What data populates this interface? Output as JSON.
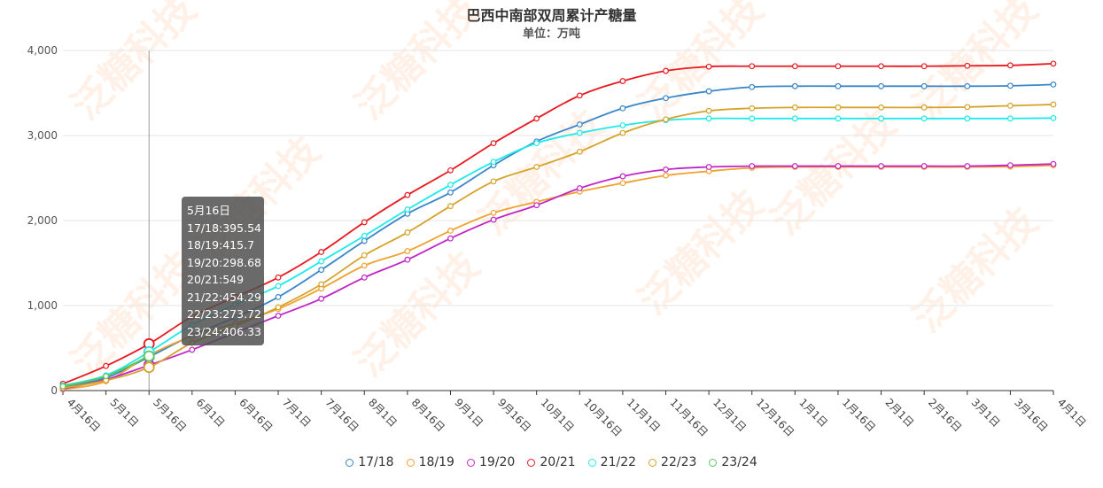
{
  "chart_data": {
    "type": "line",
    "title": "巴西中南部双周累计产糖量",
    "subtitle": "单位：万吨",
    "watermark": "泛糖科技",
    "categories": [
      "4月16日",
      "5月1日",
      "5月16日",
      "6月1日",
      "6月16日",
      "7月1日",
      "7月16日",
      "8月1日",
      "8月16日",
      "9月1日",
      "9月16日",
      "10月1日",
      "10月16日",
      "11月1日",
      "11月16日",
      "12月1日",
      "12月16日",
      "1月1日",
      "1月16日",
      "2月1日",
      "2月16日",
      "3月1日",
      "3月16日",
      "4月1日"
    ],
    "ylim": [
      0,
      4000
    ],
    "yticks": [
      "0",
      "1,000",
      "2,000",
      "3,000",
      "4,000"
    ],
    "yticks_values": [
      0,
      1000,
      2000,
      3000,
      4000
    ],
    "grid": true,
    "legend_position": "bottom",
    "series": [
      {
        "name": "17/18",
        "color": "#3a86c8",
        "values": [
          45,
          150,
          395.54,
          650,
          860,
          1100,
          1420,
          1760,
          2080,
          2330,
          2650,
          2930,
          3130,
          3320,
          3440,
          3520,
          3570,
          3580,
          3580,
          3580,
          3580,
          3580,
          3585,
          3600
        ]
      },
      {
        "name": "18/19",
        "color": "#f0a22e",
        "values": [
          15,
          110,
          415.7,
          640,
          790,
          960,
          1200,
          1470,
          1640,
          1880,
          2090,
          2220,
          2340,
          2440,
          2530,
          2580,
          2620,
          2630,
          2630,
          2630,
          2630,
          2630,
          2635,
          2650
        ]
      },
      {
        "name": "19/20",
        "color": "#c225c7",
        "values": [
          20,
          130,
          298.68,
          480,
          680,
          880,
          1080,
          1330,
          1540,
          1790,
          2010,
          2180,
          2380,
          2520,
          2600,
          2630,
          2640,
          2640,
          2640,
          2640,
          2640,
          2640,
          2650,
          2665
        ]
      },
      {
        "name": "20/21",
        "color": "#e8191f",
        "values": [
          80,
          290,
          549,
          870,
          1100,
          1330,
          1630,
          1980,
          2300,
          2590,
          2910,
          3200,
          3470,
          3640,
          3760,
          3810,
          3815,
          3815,
          3815,
          3815,
          3815,
          3820,
          3825,
          3845
        ]
      },
      {
        "name": "21/22",
        "color": "#1fe9ea",
        "values": [
          60,
          180,
          454.29,
          770,
          1010,
          1230,
          1520,
          1820,
          2130,
          2420,
          2690,
          2910,
          3030,
          3120,
          3180,
          3200,
          3200,
          3200,
          3200,
          3200,
          3200,
          3200,
          3200,
          3205
        ]
      },
      {
        "name": "22/23",
        "color": "#d6a32a",
        "values": [
          30,
          120,
          273.72,
          560,
          760,
          980,
          1250,
          1590,
          1860,
          2170,
          2460,
          2630,
          2810,
          3030,
          3190,
          3290,
          3320,
          3330,
          3330,
          3330,
          3330,
          3335,
          3350,
          3365
        ]
      },
      {
        "name": "23/24",
        "color": "#5ec85c",
        "values": [
          50,
          170,
          406.33,
          null,
          null,
          null,
          null,
          null,
          null,
          null,
          null,
          null,
          null,
          null,
          null,
          null,
          null,
          null,
          null,
          null,
          null,
          null,
          null,
          null
        ]
      }
    ]
  },
  "tooltip": {
    "title": "5月16日",
    "rows": [
      "17/18:395.54",
      "18/19:415.7",
      "19/20:298.68",
      "20/21:549",
      "21/22:454.29",
      "22/23:273.72",
      "23/24:406.33"
    ]
  }
}
